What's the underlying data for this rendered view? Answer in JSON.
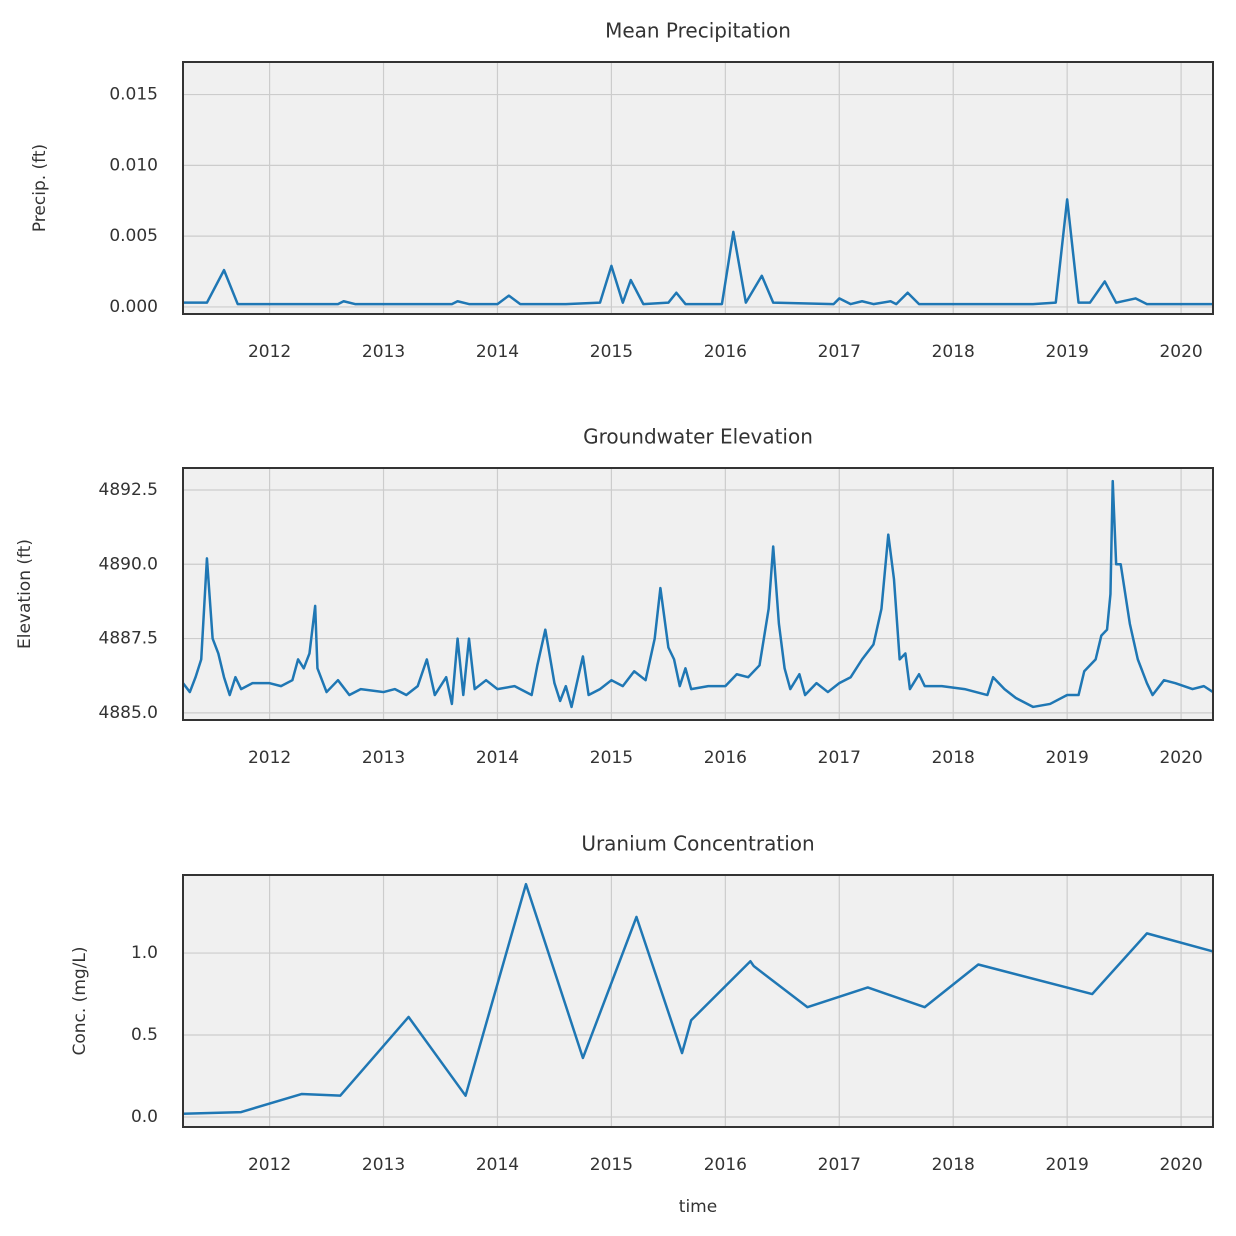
{
  "chart_data": [
    {
      "type": "line",
      "title": "Mean Precipitation",
      "ylabel": "Precip. (ft)",
      "color": "#1f77b4",
      "grid": true,
      "xlim": [
        2011.24,
        2020.28
      ],
      "xticks": [
        2012,
        2013,
        2014,
        2015,
        2016,
        2017,
        2018,
        2019,
        2020
      ],
      "ylim": [
        -0.0005,
        0.0173
      ],
      "yticks": [
        {
          "value": 0,
          "label": "0.000"
        },
        {
          "value": 0.005,
          "label": "0.005"
        },
        {
          "value": 0.01,
          "label": "0.010"
        },
        {
          "value": 0.015,
          "label": "0.015"
        }
      ],
      "x": [
        2011.24,
        2011.45,
        2011.6,
        2011.72,
        2012.6,
        2012.65,
        2012.75,
        2013.6,
        2013.65,
        2013.75,
        2014.0,
        2014.1,
        2014.2,
        2014.6,
        2014.9,
        2015.0,
        2015.1,
        2015.17,
        2015.28,
        2015.5,
        2015.57,
        2015.65,
        2015.97,
        2016.07,
        2016.18,
        2016.32,
        2016.42,
        2016.95,
        2017.0,
        2017.1,
        2017.2,
        2017.3,
        2017.45,
        2017.5,
        2017.6,
        2017.7,
        2018.7,
        2018.9,
        2019.0,
        2019.1,
        2019.2,
        2019.33,
        2019.43,
        2019.6,
        2019.7,
        2020.28
      ],
      "values": [
        0.0003,
        0.0003,
        0.0026,
        0.0002,
        0.0002,
        0.0004,
        0.0002,
        0.0002,
        0.0004,
        0.0002,
        0.0002,
        0.0008,
        0.0002,
        0.0002,
        0.0003,
        0.0029,
        0.0003,
        0.0019,
        0.0002,
        0.0003,
        0.001,
        0.0002,
        0.0002,
        0.0053,
        0.0003,
        0.0022,
        0.0003,
        0.0002,
        0.0006,
        0.0002,
        0.0004,
        0.0002,
        0.0004,
        0.0002,
        0.001,
        0.0002,
        0.0002,
        0.0003,
        0.0076,
        0.0003,
        0.0003,
        0.0018,
        0.0003,
        0.0006,
        0.0002,
        0.0002
      ]
    },
    {
      "type": "line",
      "title": "Groundwater Elevation",
      "ylabel": "Elevation (ft)",
      "color": "#1f77b4",
      "grid": true,
      "xlim": [
        2011.24,
        2020.28
      ],
      "xticks": [
        2012,
        2013,
        2014,
        2015,
        2016,
        2017,
        2018,
        2019,
        2020
      ],
      "ylim": [
        4884.76,
        4893.24
      ],
      "yticks": [
        {
          "value": 4885,
          "label": "4885.0"
        },
        4887.5,
        {
          "value": 4890,
          "label": "4890.0"
        },
        4892.5
      ],
      "x": [
        2011.24,
        2011.3,
        2011.35,
        2011.4,
        2011.45,
        2011.5,
        2011.55,
        2011.6,
        2011.65,
        2011.7,
        2011.75,
        2011.85,
        2012.0,
        2012.1,
        2012.2,
        2012.25,
        2012.3,
        2012.35,
        2012.4,
        2012.42,
        2012.5,
        2012.6,
        2012.7,
        2012.8,
        2013.0,
        2013.1,
        2013.2,
        2013.3,
        2013.38,
        2013.45,
        2013.55,
        2013.6,
        2013.65,
        2013.7,
        2013.75,
        2013.8,
        2013.9,
        2014.0,
        2014.15,
        2014.3,
        2014.35,
        2014.42,
        2014.5,
        2014.55,
        2014.6,
        2014.65,
        2014.72,
        2014.75,
        2014.8,
        2014.9,
        2015.0,
        2015.1,
        2015.2,
        2015.3,
        2015.38,
        2015.43,
        2015.5,
        2015.55,
        2015.6,
        2015.65,
        2015.7,
        2015.85,
        2016.0,
        2016.1,
        2016.2,
        2016.3,
        2016.38,
        2016.42,
        2016.47,
        2016.52,
        2016.57,
        2016.65,
        2016.7,
        2016.8,
        2016.9,
        2017.0,
        2017.1,
        2017.2,
        2017.3,
        2017.37,
        2017.43,
        2017.48,
        2017.53,
        2017.58,
        2017.62,
        2017.7,
        2017.75,
        2017.9,
        2018.1,
        2018.3,
        2018.35,
        2018.45,
        2018.55,
        2018.7,
        2018.85,
        2019.0,
        2019.1,
        2019.15,
        2019.25,
        2019.3,
        2019.35,
        2019.38,
        2019.4,
        2019.43,
        2019.47,
        2019.55,
        2019.62,
        2019.7,
        2019.75,
        2019.85,
        2019.95,
        2020.1,
        2020.2,
        2020.28
      ],
      "values": [
        4886.0,
        4885.7,
        4886.2,
        4886.8,
        4890.2,
        4887.5,
        4887.0,
        4886.2,
        4885.6,
        4886.2,
        4885.8,
        4886.0,
        4886.0,
        4885.9,
        4886.1,
        4886.8,
        4886.5,
        4887.0,
        4888.6,
        4886.5,
        4885.7,
        4886.1,
        4885.6,
        4885.8,
        4885.7,
        4885.8,
        4885.6,
        4885.9,
        4886.8,
        4885.6,
        4886.2,
        4885.3,
        4887.5,
        4885.6,
        4887.5,
        4885.8,
        4886.1,
        4885.8,
        4885.9,
        4885.6,
        4886.6,
        4887.8,
        4886.0,
        4885.4,
        4885.9,
        4885.2,
        4886.4,
        4886.9,
        4885.6,
        4885.8,
        4886.1,
        4885.9,
        4886.4,
        4886.1,
        4887.5,
        4889.2,
        4887.2,
        4886.8,
        4885.9,
        4886.5,
        4885.8,
        4885.9,
        4885.9,
        4886.3,
        4886.2,
        4886.6,
        4888.5,
        4890.6,
        4888.0,
        4886.5,
        4885.8,
        4886.3,
        4885.6,
        4886.0,
        4885.7,
        4886.0,
        4886.2,
        4886.8,
        4887.3,
        4888.5,
        4891.0,
        4889.5,
        4886.8,
        4887.0,
        4885.8,
        4886.3,
        4885.9,
        4885.9,
        4885.8,
        4885.6,
        4886.2,
        4885.8,
        4885.5,
        4885.2,
        4885.3,
        4885.6,
        4885.6,
        4886.4,
        4886.8,
        4887.6,
        4887.8,
        4889.0,
        4892.8,
        4890.0,
        4890.0,
        4888.0,
        4886.8,
        4886.0,
        4885.6,
        4886.1,
        4886.0,
        4885.8,
        4885.9,
        4885.7
      ]
    },
    {
      "type": "line",
      "title": "Uranium Concentration",
      "ylabel": "Conc. (mg/L)",
      "xlabel": "time",
      "color": "#1f77b4",
      "grid": true,
      "xlim": [
        2011.24,
        2020.28
      ],
      "xticks": [
        2012,
        2013,
        2014,
        2015,
        2016,
        2017,
        2018,
        2019,
        2020
      ],
      "ylim": [
        -0.061,
        1.476
      ],
      "yticks": [
        {
          "value": 0,
          "label": "0.0"
        },
        0.5,
        {
          "value": 1,
          "label": "1.0"
        }
      ],
      "x": [
        2011.24,
        2011.75,
        2012.28,
        2012.62,
        2013.22,
        2013.72,
        2014.25,
        2014.75,
        2015.22,
        2015.62,
        2015.7,
        2016.22,
        2016.25,
        2016.72,
        2017.25,
        2017.75,
        2018.22,
        2019.22,
        2019.7,
        2020.28
      ],
      "values": [
        0.02,
        0.03,
        0.14,
        0.13,
        0.61,
        0.13,
        1.42,
        0.36,
        1.22,
        0.39,
        0.59,
        0.95,
        0.92,
        0.67,
        0.79,
        0.67,
        0.93,
        0.75,
        1.12,
        1.01
      ]
    }
  ]
}
